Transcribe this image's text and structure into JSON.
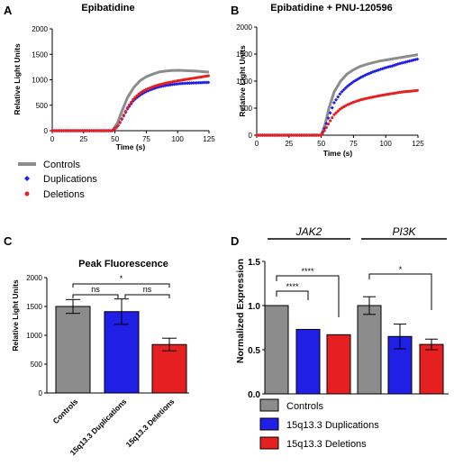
{
  "panels": {
    "A": "A",
    "B": "B",
    "C": "C",
    "D": "D"
  },
  "legend_top": [
    {
      "label": "Controls",
      "color": "#8c8c8c",
      "marker": "line"
    },
    {
      "label": "Duplications",
      "color": "#1f1fe6",
      "marker": "diamond"
    },
    {
      "label": "Deletions",
      "color": "#e62020",
      "marker": "dot"
    }
  ],
  "legend_d": [
    {
      "label": "Controls",
      "color": "#8c8c8c"
    },
    {
      "label": "15q13.3 Duplications",
      "color": "#1f1fe6"
    },
    {
      "label": "15q13.3 Deletions",
      "color": "#e62020"
    }
  ],
  "chart_data": [
    {
      "id": "A",
      "type": "line",
      "title": "Epibatidine",
      "xlabel": "Time (s)",
      "ylabel": "Relative Light Units",
      "xlim": [
        0,
        125
      ],
      "ylim": [
        0,
        2000
      ],
      "xticks": [
        0,
        25,
        50,
        75,
        100,
        125
      ],
      "yticks": [
        0,
        500,
        1000,
        1500,
        2000
      ],
      "series": [
        {
          "color": "#8c8c8c",
          "points": [
            [
              0,
              0
            ],
            [
              48,
              0
            ],
            [
              52,
              150
            ],
            [
              55,
              350
            ],
            [
              60,
              650
            ],
            [
              65,
              850
            ],
            [
              70,
              980
            ],
            [
              75,
              1060
            ],
            [
              80,
              1110
            ],
            [
              85,
              1150
            ],
            [
              90,
              1170
            ],
            [
              95,
              1180
            ],
            [
              100,
              1185
            ],
            [
              105,
              1180
            ],
            [
              110,
              1175
            ],
            [
              115,
              1170
            ],
            [
              120,
              1160
            ],
            [
              125,
              1150
            ]
          ]
        },
        {
          "color": "#1f1fe6",
          "points": [
            [
              0,
              0
            ],
            [
              48,
              0
            ],
            [
              52,
              80
            ],
            [
              55,
              200
            ],
            [
              60,
              430
            ],
            [
              65,
              600
            ],
            [
              70,
              700
            ],
            [
              75,
              770
            ],
            [
              80,
              820
            ],
            [
              85,
              860
            ],
            [
              90,
              885
            ],
            [
              95,
              905
            ],
            [
              100,
              920
            ],
            [
              105,
              930
            ],
            [
              110,
              935
            ],
            [
              115,
              940
            ],
            [
              120,
              945
            ],
            [
              125,
              950
            ]
          ]
        },
        {
          "color": "#e62020",
          "points": [
            [
              0,
              0
            ],
            [
              48,
              0
            ],
            [
              52,
              80
            ],
            [
              55,
              210
            ],
            [
              60,
              450
            ],
            [
              65,
              630
            ],
            [
              70,
              740
            ],
            [
              75,
              810
            ],
            [
              80,
              860
            ],
            [
              85,
              900
            ],
            [
              90,
              930
            ],
            [
              95,
              955
            ],
            [
              100,
              980
            ],
            [
              105,
              1000
            ],
            [
              110,
              1020
            ],
            [
              115,
              1040
            ],
            [
              120,
              1060
            ],
            [
              125,
              1080
            ]
          ]
        }
      ]
    },
    {
      "id": "B",
      "type": "line",
      "title": "Epibatidine + PNU-120596",
      "xlabel": "Time (s)",
      "ylabel": "Relative Light Units",
      "xlim": [
        0,
        125
      ],
      "ylim": [
        0,
        2000
      ],
      "xticks": [
        0,
        25,
        50,
        75,
        100,
        125
      ],
      "yticks": [
        0,
        500,
        1000,
        1500,
        2000
      ],
      "series": [
        {
          "color": "#8c8c8c",
          "points": [
            [
              0,
              0
            ],
            [
              50,
              0
            ],
            [
              53,
              200
            ],
            [
              56,
              500
            ],
            [
              60,
              800
            ],
            [
              65,
              1000
            ],
            [
              70,
              1130
            ],
            [
              75,
              1210
            ],
            [
              80,
              1270
            ],
            [
              85,
              1310
            ],
            [
              90,
              1340
            ],
            [
              95,
              1370
            ],
            [
              100,
              1390
            ],
            [
              105,
              1410
            ],
            [
              110,
              1430
            ],
            [
              115,
              1450
            ],
            [
              120,
              1470
            ],
            [
              125,
              1490
            ]
          ]
        },
        {
          "color": "#1f1fe6",
          "points": [
            [
              0,
              0
            ],
            [
              50,
              0
            ],
            [
              53,
              150
            ],
            [
              56,
              350
            ],
            [
              60,
              600
            ],
            [
              65,
              780
            ],
            [
              70,
              900
            ],
            [
              75,
              990
            ],
            [
              80,
              1060
            ],
            [
              85,
              1120
            ],
            [
              90,
              1170
            ],
            [
              95,
              1210
            ],
            [
              100,
              1250
            ],
            [
              105,
              1280
            ],
            [
              110,
              1320
            ],
            [
              115,
              1350
            ],
            [
              120,
              1380
            ],
            [
              125,
              1410
            ]
          ]
        },
        {
          "color": "#e62020",
          "points": [
            [
              0,
              0
            ],
            [
              50,
              0
            ],
            [
              53,
              100
            ],
            [
              56,
              230
            ],
            [
              60,
              380
            ],
            [
              65,
              490
            ],
            [
              70,
              560
            ],
            [
              75,
              610
            ],
            [
              80,
              650
            ],
            [
              85,
              680
            ],
            [
              90,
              705
            ],
            [
              95,
              730
            ],
            [
              100,
              750
            ],
            [
              105,
              770
            ],
            [
              110,
              790
            ],
            [
              115,
              805
            ],
            [
              120,
              815
            ],
            [
              125,
              830
            ]
          ]
        }
      ]
    },
    {
      "id": "C",
      "type": "bar",
      "title": "Peak Fluorescence",
      "ylabel": "Relative Light Units",
      "ylim": [
        0,
        2000
      ],
      "yticks": [
        0,
        500,
        1000,
        1500,
        2000
      ],
      "categories": [
        "Controls",
        "15q13.3 Duplications",
        "15q13.3 Deletions"
      ],
      "values": [
        1500,
        1410,
        840
      ],
      "errors": [
        120,
        220,
        110
      ],
      "colors": [
        "#8c8c8c",
        "#1f1fe6",
        "#e62020"
      ],
      "significance": [
        {
          "from": 0,
          "to": 1,
          "label": "ns"
        },
        {
          "from": 1,
          "to": 2,
          "label": "ns"
        },
        {
          "from": 0,
          "to": 2,
          "label": "*"
        }
      ]
    },
    {
      "id": "D",
      "type": "bar",
      "ylabel": "Normalized Expression",
      "ylim": [
        0,
        1.5
      ],
      "yticks": [
        "0.0",
        "0.5",
        "1.0",
        "1.5"
      ],
      "groups": [
        {
          "label": "JAK2",
          "values": [
            1.0,
            0.73,
            0.67
          ],
          "errors": [
            0,
            0,
            0
          ],
          "significance": [
            {
              "from": 0,
              "to": 1,
              "label": "****"
            },
            {
              "from": 0,
              "to": 2,
              "label": "****"
            }
          ]
        },
        {
          "label": "PI3K",
          "values": [
            1.0,
            0.65,
            0.56
          ],
          "errors": [
            0.1,
            0.14,
            0.06
          ],
          "significance": [
            {
              "from": 0,
              "to": 2,
              "label": "*"
            }
          ]
        }
      ],
      "colors": [
        "#8c8c8c",
        "#1f1fe6",
        "#e62020"
      ]
    }
  ]
}
